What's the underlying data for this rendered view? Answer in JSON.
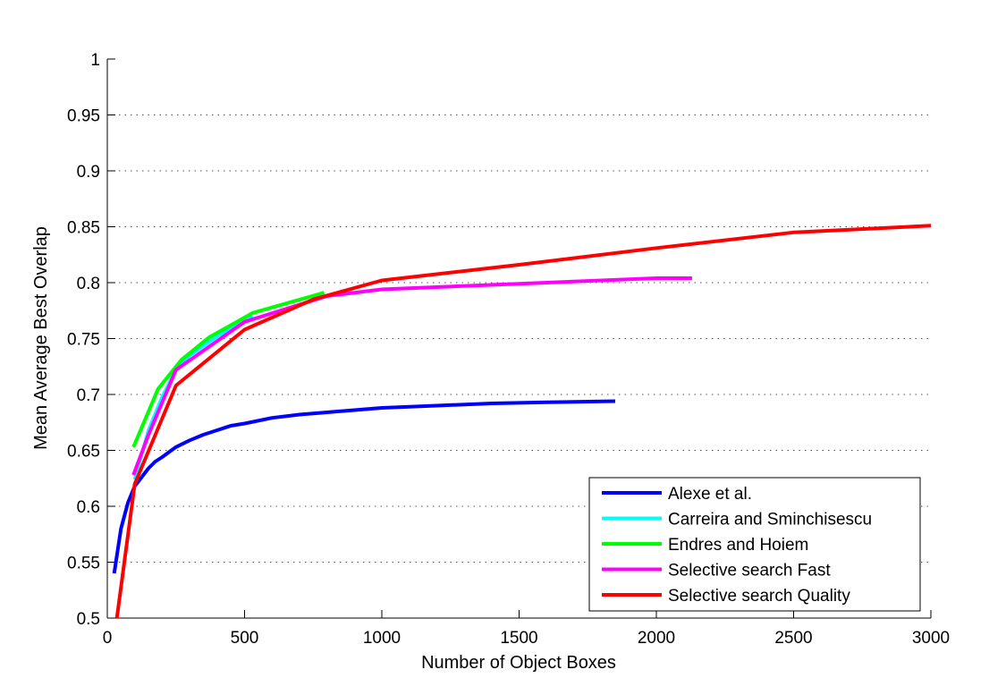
{
  "chart_data": {
    "type": "line",
    "title": "",
    "xlabel": "Number of Object Boxes",
    "ylabel": "Mean Average Best Overlap",
    "xlim": [
      0,
      3000
    ],
    "ylim": [
      0.5,
      1
    ],
    "xticks": [
      0,
      500,
      1000,
      1500,
      2000,
      2500,
      3000
    ],
    "xtick_labels": [
      "0",
      "500",
      "1000",
      "1500",
      "2000",
      "2500",
      "3000"
    ],
    "yticks": [
      0.5,
      0.55,
      0.6,
      0.65,
      0.7,
      0.75,
      0.8,
      0.85,
      0.9,
      0.95,
      1
    ],
    "ytick_labels": [
      "0.5",
      "0.55",
      "0.6",
      "0.65",
      "0.7",
      "0.75",
      "0.8",
      "0.85",
      "0.9",
      "0.95",
      "1"
    ],
    "grid": "horizontal dotted",
    "legend_position": "bottom-right",
    "series": [
      {
        "name": "Alexe et al.",
        "color": "#0000ff",
        "x": [
          25,
          50,
          75,
          100,
          125,
          150,
          175,
          200,
          250,
          300,
          350,
          400,
          450,
          500,
          600,
          700,
          800,
          900,
          1000,
          1200,
          1400,
          1600,
          1850
        ],
        "y": [
          0.54,
          0.58,
          0.603,
          0.618,
          0.626,
          0.634,
          0.64,
          0.644,
          0.653,
          0.659,
          0.664,
          0.668,
          0.672,
          0.674,
          0.679,
          0.682,
          0.684,
          0.686,
          0.688,
          0.69,
          0.692,
          0.693,
          0.694
        ]
      },
      {
        "name": "Carreira and Sminchisescu",
        "color": "#00ffff",
        "x": [
          100,
          150,
          200,
          250,
          300,
          400,
          530
        ],
        "y": [
          0.624,
          0.668,
          0.698,
          0.722,
          0.735,
          0.752,
          0.77
        ]
      },
      {
        "name": "Endres and Hoiem",
        "color": "#00ff00",
        "x": [
          95,
          185,
          270,
          370,
          530,
          790
        ],
        "y": [
          0.653,
          0.705,
          0.731,
          0.751,
          0.773,
          0.791
        ]
      },
      {
        "name": "Selective search Fast",
        "color": "#ff00ff",
        "x": [
          95,
          150,
          250,
          500,
          800,
          1000,
          1500,
          2000,
          2130
        ],
        "y": [
          0.628,
          0.664,
          0.722,
          0.765,
          0.788,
          0.794,
          0.799,
          0.804,
          0.804
        ]
      },
      {
        "name": "Selective search Quality",
        "color": "#ff0000",
        "x": [
          35,
          100,
          250,
          500,
          750,
          1000,
          1500,
          2000,
          2500,
          3000
        ],
        "y": [
          0.5,
          0.62,
          0.708,
          0.758,
          0.785,
          0.802,
          0.816,
          0.831,
          0.845,
          0.851
        ]
      }
    ]
  }
}
